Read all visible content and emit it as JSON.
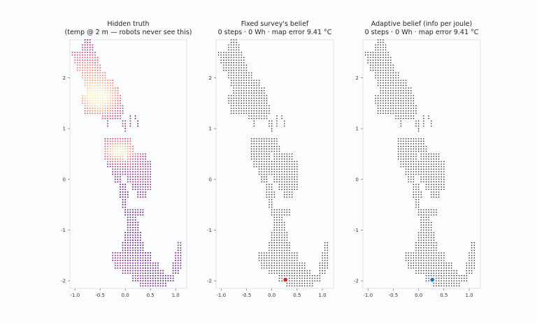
{
  "chart_data": [
    {
      "type": "scatter",
      "variant": "truth",
      "title_line1": "Hidden truth",
      "title_line2": "(temp @ 2 m — robots never see this)",
      "xlim": [
        -1.1,
        1.22
      ],
      "ylim": [
        -2.15,
        2.75
      ],
      "xticks": [
        "-1.0",
        "-0.5",
        "0.0",
        "0.5",
        "1.0"
      ],
      "yticks": [
        "-2",
        "-1",
        "0",
        "1",
        "2"
      ],
      "colormap": [
        "#3b0f70",
        "#8c2981",
        "#de4968",
        "#fe9f6d",
        "#fcfdbf"
      ],
      "point_spacing": 0.05
    },
    {
      "type": "scatter",
      "variant": "belief",
      "title_line1": "Fixed survey's belief",
      "title_line2": "0 steps · 0 Wh · map error 9.41 °C",
      "xlim": [
        -1.1,
        1.22
      ],
      "ylim": [
        -2.15,
        2.75
      ],
      "xticks": [
        "-1.0",
        "-0.5",
        "0.0",
        "0.5",
        "1.0"
      ],
      "yticks": [
        "-2",
        "-1",
        "0",
        "1",
        "2"
      ],
      "robot": {
        "x": 0.27,
        "y": -1.98,
        "color": "#d62728"
      },
      "point_color": "#111111",
      "point_spacing": 0.05
    },
    {
      "type": "scatter",
      "variant": "belief",
      "title_line1": "Adaptive belief (info per joule)",
      "title_line2": "0 steps · 0 Wh · map error 9.41 °C",
      "xlim": [
        -1.1,
        1.22
      ],
      "ylim": [
        -2.15,
        2.75
      ],
      "xticks": [
        "-1.0",
        "-0.5",
        "0.0",
        "0.5",
        "1.0"
      ],
      "yticks": [
        "-2",
        "-1",
        "0",
        "1",
        "2"
      ],
      "robot": {
        "x": 0.27,
        "y": -1.98,
        "color": "#1f77b4"
      },
      "point_color": "#111111",
      "point_spacing": 0.05
    }
  ]
}
